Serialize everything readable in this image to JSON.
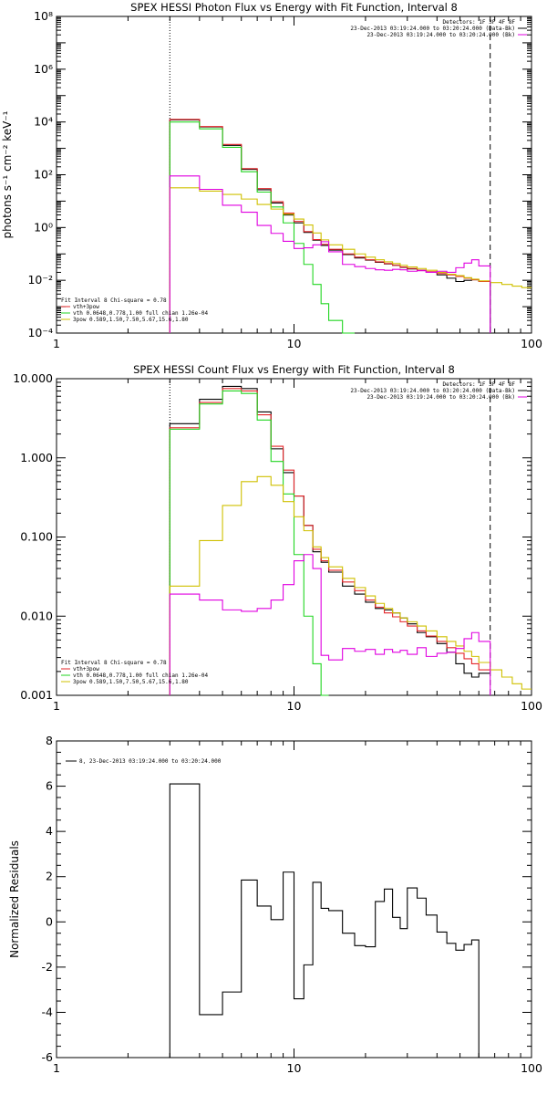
{
  "colors": {
    "black": "#000000",
    "red": "#e4262a",
    "green": "#22d622",
    "gold": "#cfc000",
    "magenta": "#e000e0"
  },
  "chart_data": [
    {
      "type": "line",
      "title": "SPEX HESSI Photon Flux vs Energy with Fit Function, Interval 8",
      "xlabel": "",
      "ylabel": "photons s⁻¹ cm⁻² keV⁻¹",
      "ylabel_plain": "photons s",
      "xscale": "log",
      "yscale": "log",
      "xlim": [
        1,
        100
      ],
      "ylim": [
        0.0001,
        100000000
      ],
      "x_ticks": [
        "1",
        "10",
        "100"
      ],
      "y_ticks": [
        "10⁻⁴",
        "10⁻²",
        "10⁰",
        "10²",
        "10⁴",
        "10⁶",
        "10⁸"
      ],
      "vlines": {
        "dotted": 3,
        "dashed": 67
      },
      "legend_top": [
        "Detectors: 1F 3F 4F 8F",
        "23-Dec-2013 03:19:24.000 to 03:20:24.000 (Data-Bk)",
        "23-Dec-2013 03:19:24.000 to 03:20:24.000 (Bk)"
      ],
      "legend_bottom": [
        "Fit Interval 8   Chi-square = 0.78",
        "vth+3pow",
        "vth 0.0648,0.778,1.00  full chian 1.26e-04",
        "3pow 0.589,1.50,7.50,5.67,15.6,1.80"
      ],
      "edges": [
        3,
        4,
        5,
        6,
        7,
        8,
        9,
        10,
        11,
        12,
        13,
        14,
        16,
        18,
        20,
        22,
        24,
        26,
        28,
        30,
        33,
        36,
        40,
        44,
        48,
        52,
        56,
        60,
        67,
        75,
        83,
        91,
        100
      ],
      "series": [
        {
          "name": "Data-Bk",
          "color": "black",
          "values": [
            12000,
            6500,
            1300,
            160,
            27,
            8.5,
            3,
            1.5,
            0.65,
            0.33,
            0.21,
            0.14,
            0.095,
            0.07,
            0.058,
            0.048,
            0.042,
            0.037,
            0.031,
            0.027,
            0.024,
            0.02,
            0.016,
            0.012,
            0.009,
            0.01,
            0.0105,
            0.009
          ]
        },
        {
          "name": "vth+3pow",
          "color": "red",
          "values": [
            12500,
            6700,
            1400,
            170,
            30,
            9.5,
            3.5,
            1.7,
            0.7,
            0.35,
            0.23,
            0.15,
            0.1,
            0.075,
            0.06,
            0.05,
            0.043,
            0.037,
            0.032,
            0.028,
            0.024,
            0.021,
            0.018,
            0.016,
            0.014,
            0.012,
            0.0105,
            0.009
          ]
        },
        {
          "name": "vth",
          "color": "green",
          "values": [
            10000,
            5500,
            1100,
            130,
            22,
            6,
            1.5,
            0.25,
            0.04,
            0.007,
            0.0013,
            0.0003,
            0.0001
          ]
        },
        {
          "name": "3pow",
          "color": "gold",
          "values": [
            32,
            24,
            18,
            12,
            7.5,
            5,
            3.2,
            2.1,
            1.25,
            0.62,
            0.34,
            0.22,
            0.15,
            0.1,
            0.075,
            0.06,
            0.05,
            0.043,
            0.037,
            0.032,
            0.028,
            0.024,
            0.02,
            0.017,
            0.015,
            0.0125,
            0.011,
            0.0095,
            0.0082,
            0.007,
            0.006,
            0.0053
          ]
        },
        {
          "name": "Bk",
          "color": "magenta",
          "values": [
            90,
            28,
            7,
            3.8,
            1.2,
            0.6,
            0.3,
            0.16,
            0.17,
            0.22,
            0.29,
            0.12,
            0.04,
            0.033,
            0.028,
            0.025,
            0.024,
            0.026,
            0.025,
            0.022,
            0.023,
            0.02,
            0.022,
            0.02,
            0.03,
            0.045,
            0.06,
            0.035
          ]
        }
      ]
    },
    {
      "type": "line",
      "title": "SPEX HESSI Count Flux vs Energy with Fit Function, Interval 8",
      "xlabel": "",
      "ylabel": "",
      "xscale": "log",
      "yscale": "log",
      "xlim": [
        1,
        100
      ],
      "ylim": [
        0.001,
        10
      ],
      "x_ticks": [
        "1",
        "10",
        "100"
      ],
      "y_ticks": [
        "0.001",
        "0.010",
        "0.100",
        "1.000",
        "10.000"
      ],
      "vlines": {
        "dotted": 3,
        "dashed": 67
      },
      "legend_top": [
        "Detectors: 1F 3F 4F 8F",
        "23-Dec-2013 03:19:24.000 to 03:20:24.000 (Data-Bk)",
        "23-Dec-2013 03:19:24.000 to 03:20:24.000 (Bk)"
      ],
      "legend_bottom": [
        "Fit Interval 8   Chi-square = 0.78",
        "vth+3pow",
        "vth 0.0648,0.778,1.00  full chian 1.26e-04",
        "3pow 0.589,1.50,7.50,5.67,15.6,1.80"
      ],
      "edges": [
        3,
        4,
        5,
        6,
        7,
        8,
        9,
        10,
        11,
        12,
        13,
        14,
        16,
        18,
        20,
        22,
        24,
        26,
        28,
        30,
        33,
        36,
        40,
        44,
        48,
        52,
        56,
        60,
        67,
        75,
        83,
        91,
        100
      ],
      "series": [
        {
          "name": "Data-Bk",
          "color": "black",
          "values": [
            2.7,
            5.5,
            8.0,
            7.5,
            3.8,
            1.3,
            0.65,
            0.33,
            0.14,
            0.065,
            0.048,
            0.036,
            0.024,
            0.019,
            0.015,
            0.0125,
            0.012,
            0.011,
            0.0095,
            0.008,
            0.0062,
            0.0055,
            0.0045,
            0.0035,
            0.0025,
            0.0019,
            0.0017,
            0.0019
          ]
        },
        {
          "name": "vth+3pow",
          "color": "red",
          "values": [
            2.4,
            5.0,
            7.5,
            7.0,
            3.5,
            1.4,
            0.7,
            0.33,
            0.14,
            0.07,
            0.05,
            0.038,
            0.027,
            0.021,
            0.016,
            0.013,
            0.011,
            0.0098,
            0.0085,
            0.0075,
            0.0065,
            0.0056,
            0.0048,
            0.004,
            0.0034,
            0.0029,
            0.0025,
            0.0021
          ]
        },
        {
          "name": "vth",
          "color": "green",
          "values": [
            2.3,
            4.8,
            7.0,
            6.5,
            3.0,
            0.9,
            0.35,
            0.06,
            0.01,
            0.0025,
            0.0009
          ]
        },
        {
          "name": "3pow",
          "color": "gold",
          "values": [
            0.024,
            0.09,
            0.25,
            0.5,
            0.58,
            0.45,
            0.28,
            0.18,
            0.12,
            0.075,
            0.055,
            0.042,
            0.03,
            0.023,
            0.018,
            0.0145,
            0.0125,
            0.011,
            0.0095,
            0.0085,
            0.0075,
            0.0065,
            0.0055,
            0.0048,
            0.0042,
            0.0036,
            0.0031,
            0.0026,
            0.0021,
            0.0017,
            0.0014,
            0.0012
          ]
        },
        {
          "name": "Bk",
          "color": "magenta",
          "values": [
            0.019,
            0.016,
            0.012,
            0.0115,
            0.0125,
            0.016,
            0.025,
            0.05,
            0.06,
            0.04,
            0.0032,
            0.0028,
            0.0039,
            0.0036,
            0.0038,
            0.0033,
            0.0038,
            0.0035,
            0.0037,
            0.0033,
            0.004,
            0.0031,
            0.0034,
            0.0035,
            0.0039,
            0.0052,
            0.0062,
            0.0048
          ]
        }
      ]
    },
    {
      "type": "line",
      "title": "",
      "xlabel": "",
      "ylabel": "Normalized Residuals",
      "xscale": "log",
      "yscale": "linear",
      "xlim": [
        1,
        100
      ],
      "ylim": [
        -6,
        8
      ],
      "x_ticks": [
        "1",
        "10",
        "100"
      ],
      "y_ticks": [
        "-6",
        "-4",
        "-2",
        "0",
        "2",
        "4",
        "6",
        "8"
      ],
      "legend_top": [
        "8, 23-Dec-2013 03:19:24.000 to 03:20:24.000"
      ],
      "edges": [
        3,
        4,
        5,
        6,
        7,
        8,
        9,
        10,
        11,
        12,
        13,
        14,
        16,
        18,
        20,
        22,
        24,
        26,
        28,
        30,
        33,
        36,
        40,
        44,
        48,
        52,
        56,
        60,
        67
      ],
      "series": [
        {
          "name": "8, 23-Dec-2013 03:19:24.000 to 03:20:24.000",
          "color": "black",
          "values": [
            6.1,
            -4.1,
            -3.1,
            1.85,
            0.7,
            0.1,
            2.2,
            -3.4,
            -1.9,
            1.75,
            0.6,
            0.5,
            -0.5,
            -1.05,
            -1.1,
            0.9,
            1.45,
            0.2,
            -0.3,
            1.5,
            1.05,
            0.3,
            -0.45,
            -0.95,
            -1.25,
            -1.0,
            -0.8
          ]
        }
      ]
    }
  ]
}
